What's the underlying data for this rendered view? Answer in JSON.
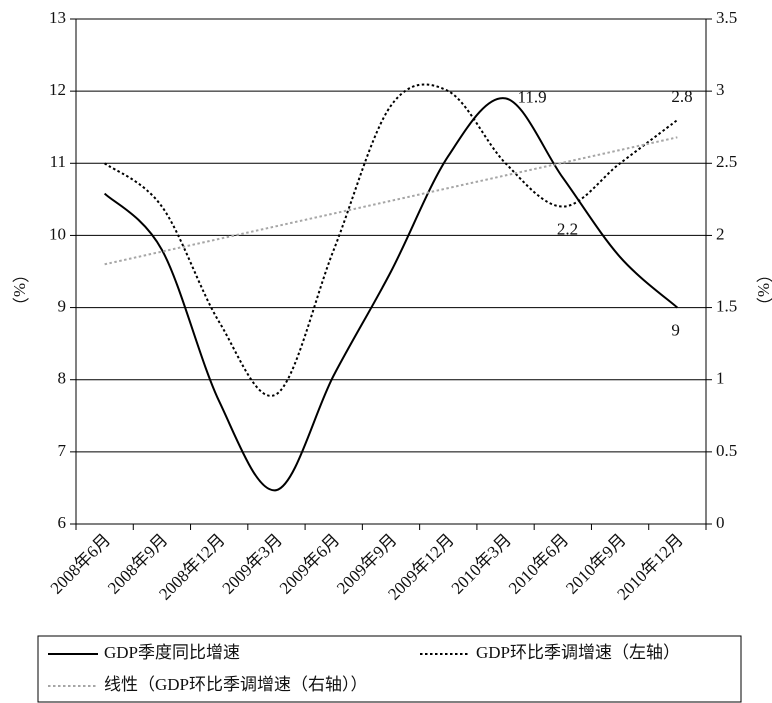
{
  "chart_data": {
    "type": "line",
    "categories": [
      "2008年6月",
      "2008年9月",
      "2008年12月",
      "2009年3月",
      "2009年6月",
      "2009年9月",
      "2009年12月",
      "2010年3月",
      "2010年6月",
      "2010年9月",
      "2010年12月"
    ],
    "series": [
      {
        "name": "GDP季度同比增速",
        "color": "#000000",
        "style": "solid",
        "axis": "y",
        "values": [
          10.58,
          9.8,
          7.7,
          6.47,
          8.06,
          9.5,
          11.1,
          11.9,
          10.8,
          9.7,
          9
        ],
        "value_labels": [
          null,
          null,
          null,
          null,
          null,
          null,
          null,
          "11.9",
          null,
          null,
          "9"
        ]
      },
      {
        "name": "GDP环比季调增速（左轴）",
        "color": "#000000",
        "style": "dotted",
        "axis": "y2",
        "values": [
          2.5,
          2.2,
          1.4,
          0.9,
          1.9,
          2.9,
          3.0,
          2.5,
          2.2,
          2.5,
          2.8
        ],
        "value_labels": [
          null,
          null,
          null,
          null,
          null,
          null,
          null,
          null,
          "2.2",
          null,
          "2.8"
        ]
      },
      {
        "name": "线性（GDP环比季调增速（右轴））",
        "color": "#a6a6a6",
        "style": "dotted",
        "axis": "y2",
        "values": [
          1.8,
          1.888,
          1.976,
          2.064,
          2.152,
          2.24,
          2.328,
          2.416,
          2.504,
          2.592,
          2.68
        ]
      }
    ],
    "y_label": "（%）",
    "y2_label": "（%）",
    "ylim": [
      6,
      13
    ],
    "yticks": [
      6,
      7,
      8,
      9,
      10,
      11,
      12,
      13
    ],
    "y2lim": [
      0,
      3.5
    ],
    "y2ticks": [
      0,
      0.5,
      1,
      1.5,
      2,
      2.5,
      3,
      3.5
    ],
    "grid": true,
    "legend": "bottom"
  }
}
